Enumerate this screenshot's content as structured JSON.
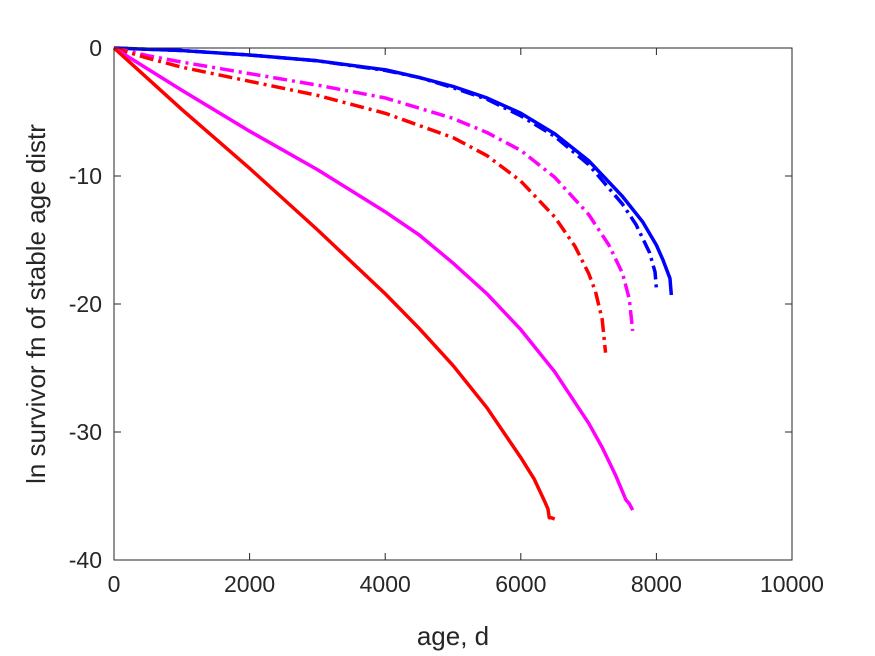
{
  "chart_data": {
    "type": "line",
    "title": "",
    "xlabel": "age, d",
    "ylabel": "ln survivor fn of stable age distr",
    "xlim": [
      0,
      10000
    ],
    "ylim": [
      -40,
      0
    ],
    "xticks": [
      0,
      2000,
      4000,
      6000,
      8000,
      10000
    ],
    "yticks": [
      0,
      -10,
      -20,
      -30,
      -40
    ],
    "xtick_labels": [
      "0",
      "2000",
      "4000",
      "6000",
      "8000",
      "10000"
    ],
    "ytick_labels": [
      "0",
      "-10",
      "-20",
      "-30",
      "-40"
    ],
    "grid": false,
    "legend": "none",
    "series": [
      {
        "color": "#0000ff",
        "style": "solid",
        "x": [
          0,
          1000,
          2000,
          3000,
          4000,
          4500,
          5000,
          5500,
          6000,
          6500,
          7000,
          7500,
          7800,
          8000,
          8100,
          8200,
          8220
        ],
        "y": [
          0,
          -0.2,
          -0.55,
          -1.0,
          -1.7,
          -2.3,
          -3.0,
          -3.9,
          -5.1,
          -6.7,
          -8.8,
          -11.6,
          -13.6,
          -15.4,
          -16.6,
          -18.0,
          -19.3
        ]
      },
      {
        "color": "#0000ff",
        "style": "dashdot",
        "x": [
          0,
          1000,
          2000,
          3000,
          4000,
          4500,
          5000,
          5500,
          6000,
          6500,
          7000,
          7500,
          7700,
          7900,
          7980,
          8000
        ],
        "y": [
          0,
          -0.2,
          -0.55,
          -1.0,
          -1.75,
          -2.3,
          -3.1,
          -4.0,
          -5.3,
          -6.9,
          -9.1,
          -12.2,
          -13.8,
          -16.0,
          -17.5,
          -18.8
        ]
      },
      {
        "color": "#ff00ff",
        "style": "dashdot",
        "x": [
          0,
          500,
          1000,
          2000,
          3000,
          4000,
          5000,
          5500,
          6000,
          6500,
          7000,
          7300,
          7500,
          7600,
          7650
        ],
        "y": [
          0,
          -0.6,
          -1.1,
          -2.0,
          -2.9,
          -3.9,
          -5.5,
          -6.6,
          -8.0,
          -10.1,
          -13.0,
          -15.4,
          -17.6,
          -19.6,
          -22.1
        ]
      },
      {
        "color": "#ff0000",
        "style": "dashdot",
        "x": [
          0,
          500,
          1000,
          2000,
          3000,
          4000,
          5000,
          5500,
          6000,
          6500,
          6800,
          7000,
          7100,
          7200,
          7250
        ],
        "y": [
          0,
          -0.8,
          -1.5,
          -2.6,
          -3.7,
          -5.1,
          -7.0,
          -8.4,
          -10.4,
          -13.2,
          -15.5,
          -17.6,
          -19.0,
          -21.2,
          -23.8
        ]
      },
      {
        "color": "#ff00ff",
        "style": "solid",
        "x": [
          0,
          1000,
          2000,
          3000,
          4000,
          4500,
          5000,
          5500,
          6000,
          6500,
          7000,
          7200,
          7400,
          7550,
          7600,
          7650
        ],
        "y": [
          0,
          -3.3,
          -6.5,
          -9.5,
          -12.8,
          -14.6,
          -16.8,
          -19.2,
          -22.0,
          -25.3,
          -29.3,
          -31.2,
          -33.4,
          -35.3,
          -35.6,
          -36.1
        ]
      },
      {
        "color": "#ff0000",
        "style": "solid",
        "x": [
          0,
          1000,
          2000,
          3000,
          4000,
          4500,
          5000,
          5500,
          6000,
          6200,
          6350,
          6400,
          6420,
          6450,
          6500
        ],
        "y": [
          0,
          -4.8,
          -9.4,
          -14.2,
          -19.2,
          -21.9,
          -24.8,
          -28.1,
          -32.0,
          -33.7,
          -35.4,
          -36.0,
          -36.7,
          -36.7,
          -36.8
        ]
      }
    ]
  }
}
